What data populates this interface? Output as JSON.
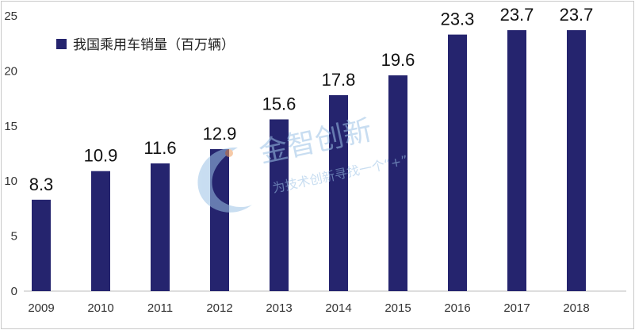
{
  "chart_data": {
    "type": "bar",
    "categories": [
      "2009",
      "2010",
      "2011",
      "2012",
      "2013",
      "2014",
      "2015",
      "2016",
      "2017",
      "2018"
    ],
    "series": [
      {
        "name": "我国乘用车销量（百万辆）",
        "values": [
          8.3,
          10.9,
          11.6,
          12.9,
          15.6,
          17.8,
          19.6,
          23.3,
          23.7,
          23.7
        ]
      }
    ],
    "data_labels": [
      "8.3",
      "10.9",
      "11.6",
      "12.9",
      "15.6",
      "17.8",
      "19.6",
      "23.3",
      "23.7",
      "23.7"
    ],
    "yticks": [
      "0",
      "5",
      "10",
      "15",
      "20",
      "25"
    ],
    "ylim": [
      0,
      25
    ],
    "title": "",
    "xlabel": "",
    "ylabel": "",
    "grid": false,
    "legend_position": "top-left",
    "bar_color": "#25246e"
  },
  "watermark": {
    "brand": "金智创新",
    "slogan": "为技术创新寻找一个“+”"
  }
}
